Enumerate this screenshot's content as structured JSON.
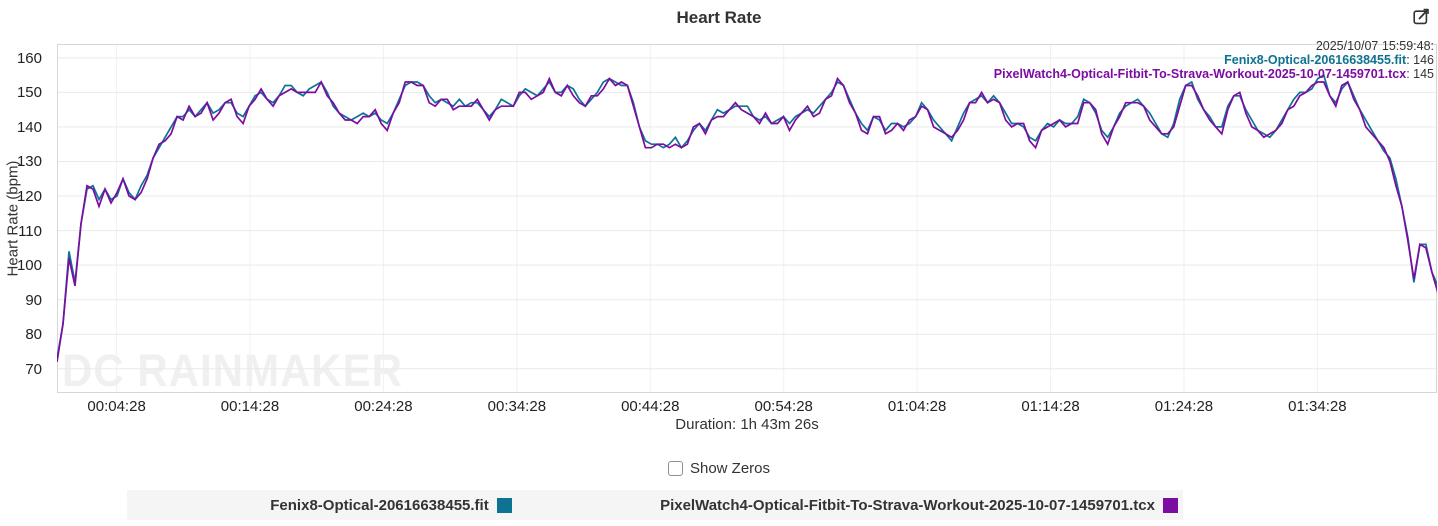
{
  "header": {
    "title": "Heart Rate"
  },
  "icons": {
    "edit": "edit-chart"
  },
  "tooltip": {
    "datetime": "2025/10/07 15:59:48:",
    "entries": [
      {
        "label": "Fenix8-Optical-20616638455.fit",
        "separator": ": ",
        "value": "146",
        "color": "#0e7392"
      },
      {
        "label": "PixelWatch4-Optical-Fitbit-To-Strava-Workout-2025-10-07-1459701.tcx",
        "separator": ": ",
        "value": "145",
        "color": "#7c0ca2"
      }
    ]
  },
  "controls": {
    "show_zeros_label": "Show Zeros",
    "show_zeros_checked": false
  },
  "legend": {
    "items": [
      {
        "label": "Fenix8-Optical-20616638455.fit",
        "color": "#0e7392"
      },
      {
        "label": "PixelWatch4-Optical-Fitbit-To-Strava-Workout-2025-10-07-1459701.tcx",
        "color": "#7c0ca2"
      }
    ]
  },
  "watermark": "DC RAINMAKER",
  "chart_data": {
    "type": "line",
    "title": "Heart Rate",
    "ylabel": "Heart Rate (bpm)",
    "xlabel": "Duration: 1h 43m 26s",
    "grid": true,
    "legend_position": "bottom",
    "ylim": [
      63,
      164
    ],
    "y_ticks": [
      70,
      80,
      90,
      100,
      110,
      120,
      130,
      140,
      150,
      160
    ],
    "xmax_seconds": 6206,
    "x_ticks": [
      {
        "t": 268,
        "label": "00:04:28"
      },
      {
        "t": 868,
        "label": "00:14:28"
      },
      {
        "t": 1468,
        "label": "00:24:28"
      },
      {
        "t": 2068,
        "label": "00:34:28"
      },
      {
        "t": 2668,
        "label": "00:44:28"
      },
      {
        "t": 3268,
        "label": "00:54:28"
      },
      {
        "t": 3868,
        "label": "01:04:28"
      },
      {
        "t": 4468,
        "label": "01:14:28"
      },
      {
        "t": 5068,
        "label": "01:24:28"
      },
      {
        "t": 5668,
        "label": "01:34:28"
      }
    ],
    "sample_interval_seconds": 27,
    "series": [
      {
        "name": "Fenix8-Optical-20616638455.fit",
        "color": "#0e7392",
        "unit": "bpm",
        "values": [
          73,
          83,
          104,
          95,
          112,
          122,
          123,
          119,
          122,
          119,
          120,
          125,
          121,
          119,
          123,
          126,
          131,
          134,
          137,
          140,
          143,
          143,
          145,
          143,
          145,
          147,
          144,
          145,
          147,
          147,
          144,
          143,
          146,
          149,
          150,
          148,
          147,
          149,
          152,
          152,
          150,
          149,
          151,
          152,
          153,
          150,
          146,
          144,
          143,
          142,
          143,
          144,
          143,
          144,
          142,
          141,
          144,
          148,
          152,
          153,
          153,
          152,
          149,
          147,
          148,
          147,
          146,
          148,
          146,
          147,
          147,
          145,
          143,
          145,
          148,
          147,
          146,
          149,
          151,
          150,
          149,
          151,
          153,
          150,
          150,
          152,
          151,
          148,
          146,
          148,
          150,
          153,
          154,
          153,
          152,
          152,
          147,
          140,
          136,
          135,
          135,
          134,
          135,
          137,
          134,
          136,
          139,
          141,
          139,
          142,
          145,
          144,
          145,
          146,
          146,
          146,
          143,
          142,
          143,
          141,
          142,
          143,
          141,
          143,
          144,
          145,
          144,
          146,
          148,
          150,
          153,
          152,
          148,
          144,
          141,
          139,
          143,
          142,
          139,
          141,
          141,
          140,
          141,
          143,
          147,
          145,
          142,
          140,
          138,
          136,
          140,
          144,
          147,
          148,
          149,
          147,
          149,
          147,
          144,
          141,
          141,
          140,
          137,
          136,
          139,
          141,
          140,
          142,
          141,
          141,
          143,
          148,
          147,
          144,
          139,
          137,
          140,
          144,
          146,
          147,
          148,
          146,
          144,
          141,
          138,
          137,
          141,
          148,
          152,
          153,
          148,
          145,
          143,
          140,
          140,
          146,
          149,
          149,
          145,
          142,
          139,
          138,
          137,
          139,
          142,
          145,
          148,
          150,
          150,
          151,
          154,
          155,
          149,
          147,
          151,
          153,
          149,
          145,
          142,
          139,
          136,
          133,
          131,
          125,
          117,
          108,
          95,
          106,
          106,
          98,
          94
        ]
      },
      {
        "name": "PixelWatch4-Optical-Fitbit-To-Strava-Workout-2025-10-07-1459701.tcx",
        "color": "#7c0ca2",
        "unit": "bpm",
        "values": [
          72,
          83,
          102,
          94,
          112,
          123,
          122,
          117,
          122,
          118,
          121,
          125,
          120,
          119,
          121,
          125,
          131,
          135,
          136,
          138,
          143,
          142,
          146,
          143,
          144,
          147,
          142,
          144,
          147,
          148,
          143,
          141,
          146,
          148,
          151,
          148,
          146,
          149,
          150,
          151,
          150,
          150,
          150,
          150,
          153,
          149,
          147,
          144,
          142,
          142,
          141,
          143,
          143,
          145,
          141,
          139,
          144,
          147,
          153,
          153,
          152,
          152,
          147,
          146,
          148,
          148,
          145,
          146,
          146,
          146,
          148,
          145,
          142,
          145,
          146,
          146,
          146,
          150,
          150,
          148,
          149,
          150,
          154,
          150,
          149,
          152,
          149,
          147,
          146,
          149,
          149,
          151,
          154,
          152,
          153,
          152,
          146,
          140,
          134,
          134,
          135,
          135,
          134,
          135,
          134,
          135,
          140,
          141,
          138,
          142,
          143,
          143,
          145,
          147,
          145,
          144,
          143,
          141,
          144,
          141,
          141,
          143,
          139,
          142,
          144,
          146,
          143,
          144,
          148,
          149,
          154,
          152,
          147,
          144,
          139,
          138,
          143,
          143,
          138,
          139,
          141,
          139,
          142,
          143,
          146,
          145,
          140,
          139,
          138,
          137,
          139,
          142,
          147,
          147,
          150,
          147,
          148,
          147,
          142,
          140,
          141,
          141,
          136,
          134,
          139,
          140,
          141,
          142,
          140,
          141,
          141,
          147,
          147,
          145,
          138,
          135,
          140,
          143,
          147,
          147,
          147,
          146,
          142,
          140,
          138,
          138,
          140,
          146,
          152,
          152,
          149,
          145,
          142,
          140,
          138,
          145,
          149,
          150,
          144,
          140,
          139,
          137,
          138,
          139,
          141,
          145,
          146,
          149,
          150,
          152,
          153,
          153,
          149,
          146,
          152,
          153,
          148,
          145,
          140,
          138,
          136,
          134,
          130,
          123,
          117,
          107,
          96,
          106,
          105,
          98,
          92
        ]
      }
    ]
  }
}
